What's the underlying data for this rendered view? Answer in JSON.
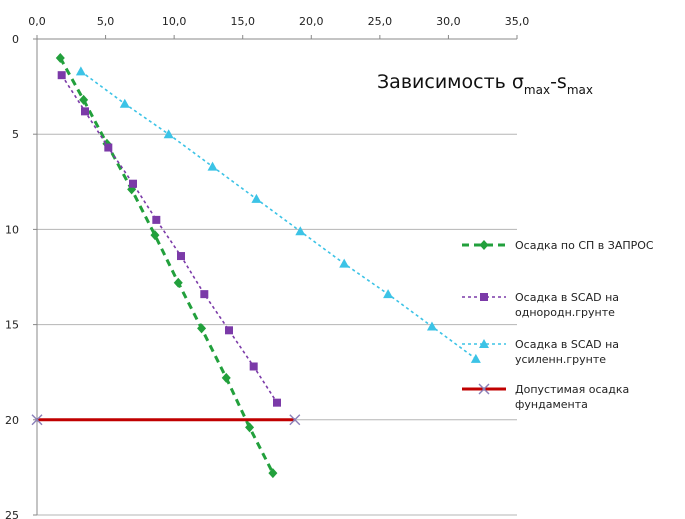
{
  "chart_data": {
    "type": "line",
    "title": {
      "prefix": "Зависимость ",
      "sigma": "σ",
      "sub1": "max",
      "dash": "-s",
      "sub2": "max"
    },
    "x_axis": {
      "range": [
        0,
        35
      ],
      "position": "top",
      "ticks": [
        "0,0",
        "5,0",
        "10,0",
        "15,0",
        "20,0",
        "25,0",
        "30,0",
        "35,0"
      ]
    },
    "y_axis": {
      "range": [
        0,
        25
      ],
      "inverted": true,
      "ticks": [
        "0",
        "5",
        "10",
        "15",
        "20",
        "25"
      ]
    },
    "grid": "horizontal",
    "legend_position": "right",
    "series": [
      {
        "name": "Осадка по СП в ЗАПРОС",
        "color": "#22a03c",
        "style": "dashed",
        "marker": "diamond",
        "points": [
          [
            1.7,
            1.0
          ],
          [
            3.4,
            3.2
          ],
          [
            5.1,
            5.5
          ],
          [
            6.9,
            7.9
          ],
          [
            8.6,
            10.3
          ],
          [
            10.3,
            12.8
          ],
          [
            12.0,
            15.2
          ],
          [
            13.8,
            17.8
          ],
          [
            15.5,
            20.4
          ],
          [
            17.2,
            22.8
          ]
        ]
      },
      {
        "name": "Осадка в SCAD на однородн.грунте",
        "color": "#7b3aa8",
        "style": "dotted",
        "marker": "square",
        "points": [
          [
            1.8,
            1.9
          ],
          [
            3.5,
            3.8
          ],
          [
            5.2,
            5.7
          ],
          [
            7.0,
            7.6
          ],
          [
            8.7,
            9.5
          ],
          [
            10.5,
            11.4
          ],
          [
            12.2,
            13.4
          ],
          [
            14.0,
            15.3
          ],
          [
            15.8,
            17.2
          ],
          [
            17.5,
            19.1
          ]
        ]
      },
      {
        "name": "Осадка в SCAD на усиленн.грунте",
        "color": "#3cc3e6",
        "style": "dotted",
        "marker": "triangle",
        "points": [
          [
            3.2,
            1.7
          ],
          [
            6.4,
            3.4
          ],
          [
            9.6,
            5.0
          ],
          [
            12.8,
            6.7
          ],
          [
            16.0,
            8.4
          ],
          [
            19.2,
            10.1
          ],
          [
            22.4,
            11.8
          ],
          [
            25.6,
            13.4
          ],
          [
            28.8,
            15.1
          ],
          [
            32.0,
            16.8
          ]
        ]
      },
      {
        "name": "Допустимая осадка фундамента",
        "color": "#c00000",
        "style": "solid",
        "marker": "x",
        "points": [
          [
            0,
            20
          ],
          [
            18.8,
            20
          ]
        ]
      }
    ]
  }
}
